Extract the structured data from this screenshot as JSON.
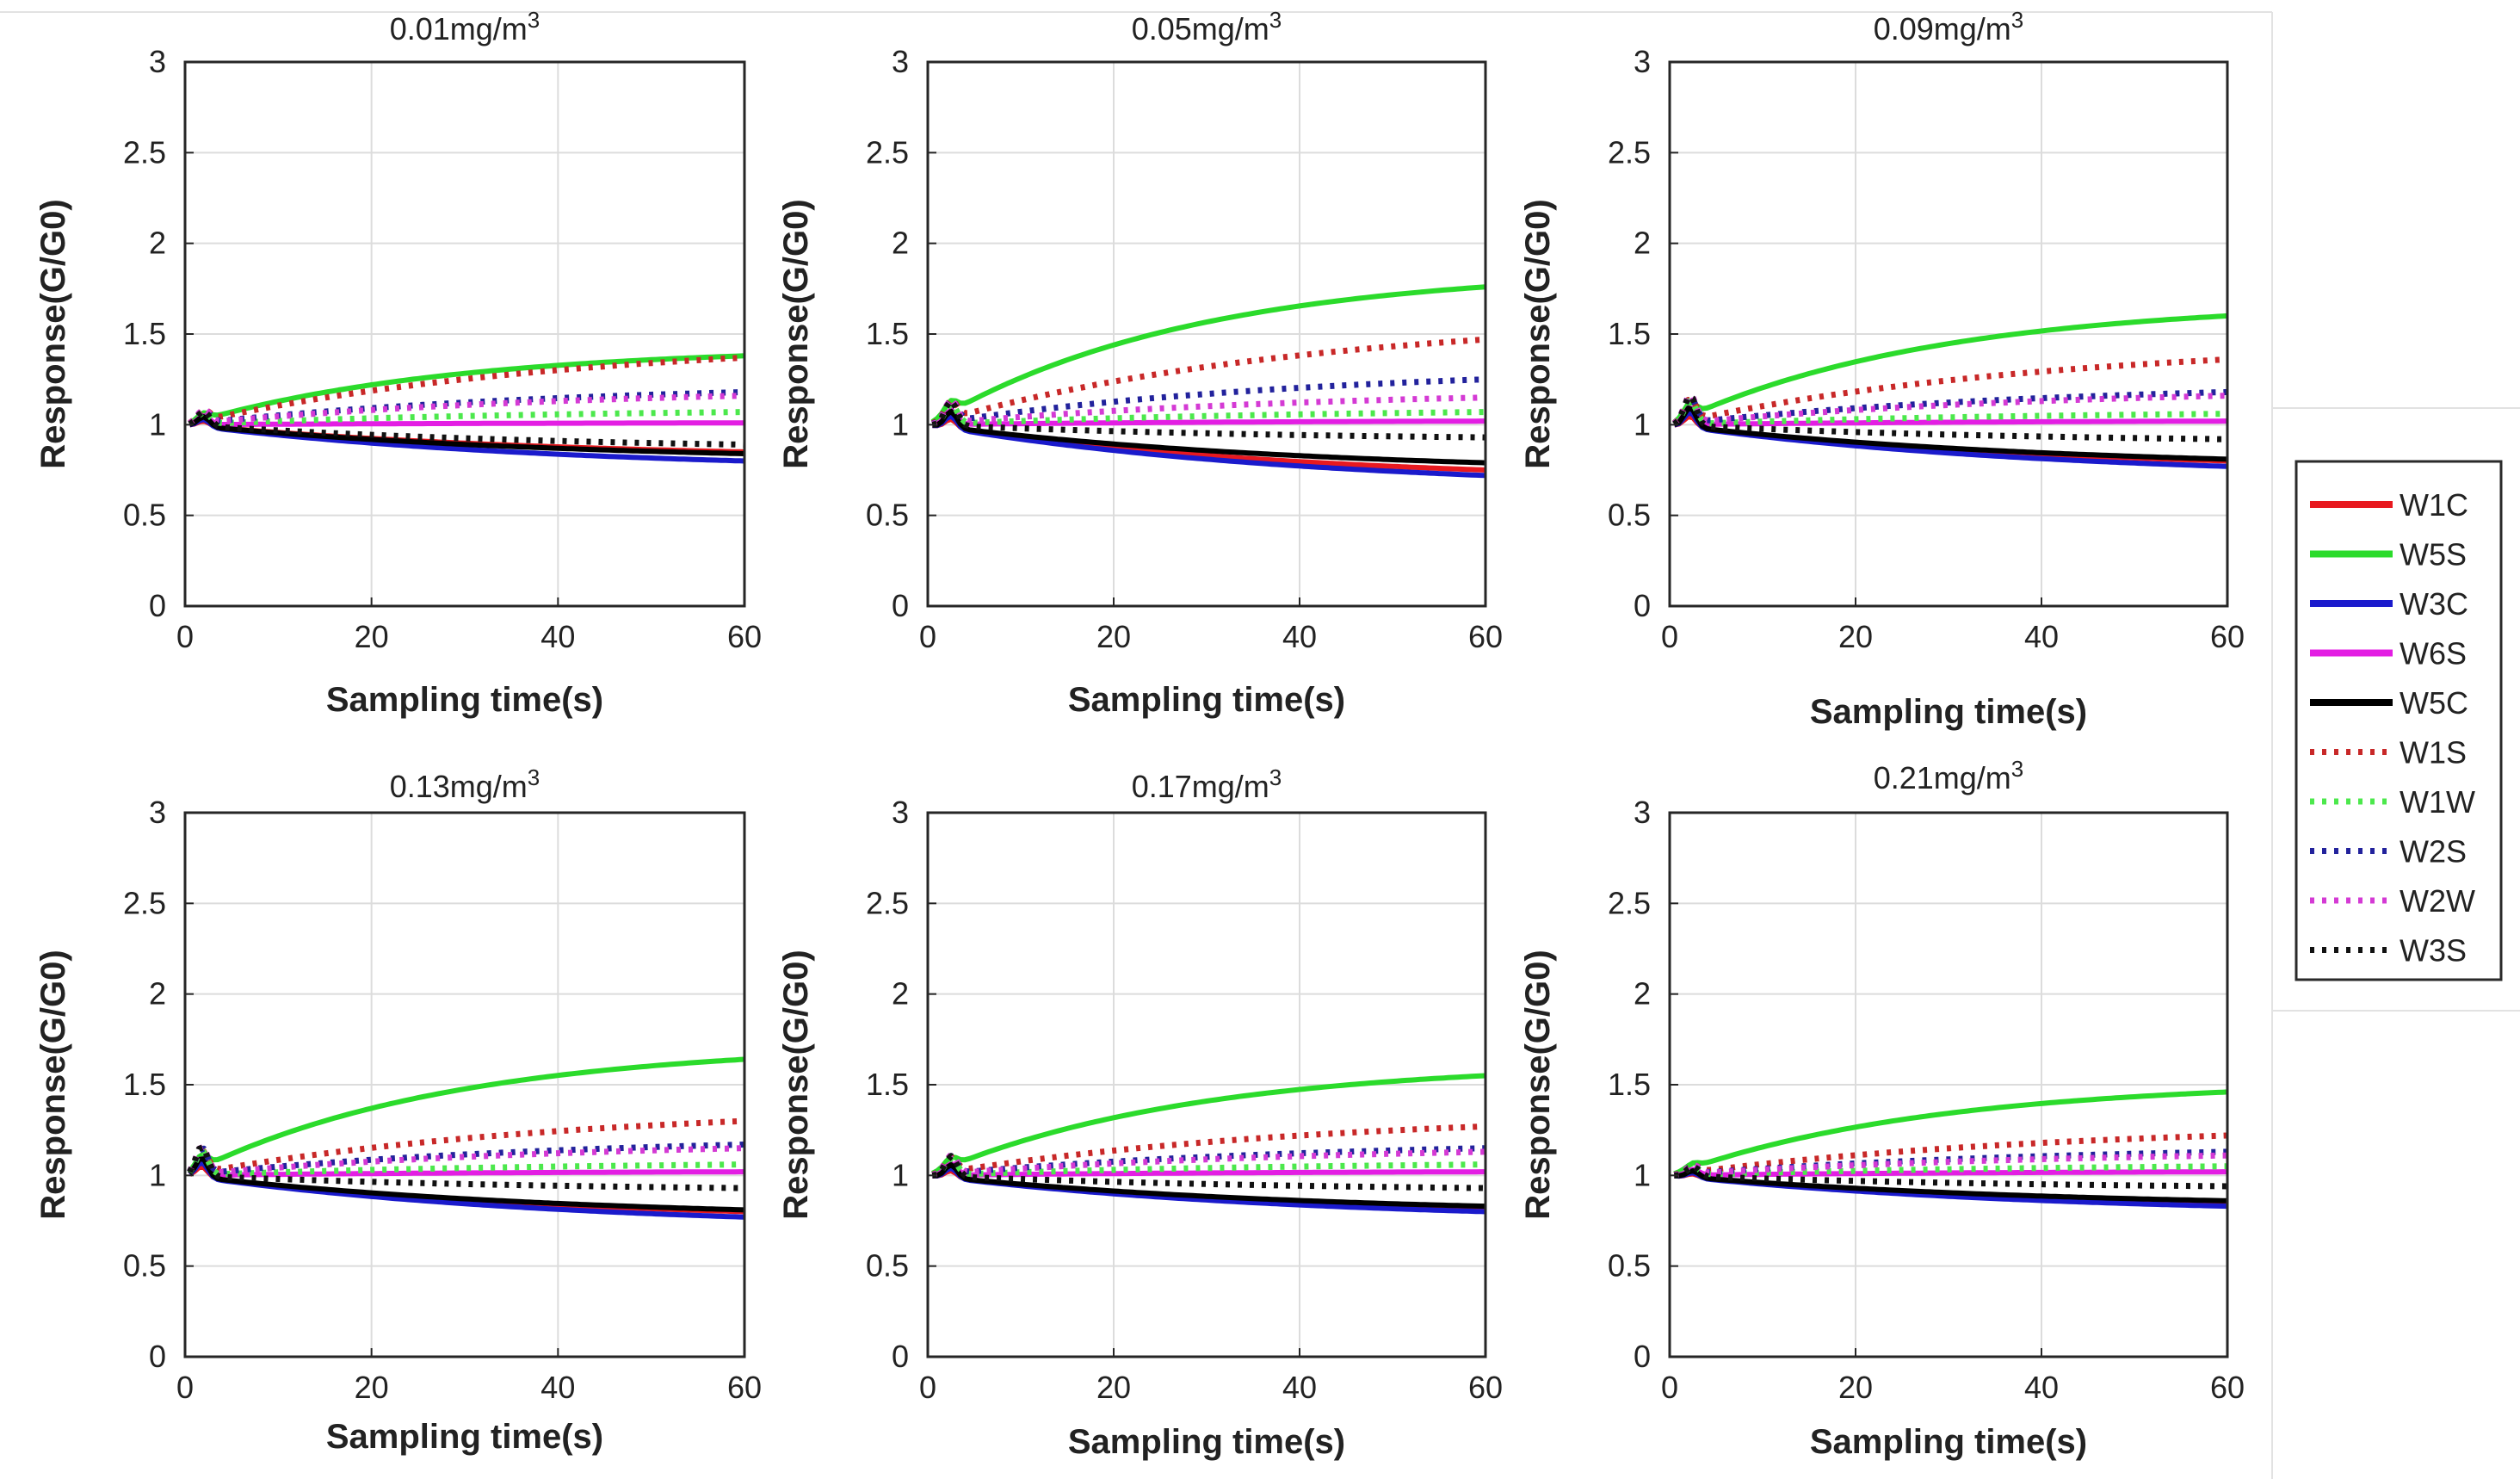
{
  "colors": {
    "W1C": "#e8191f",
    "W5S": "#2bdb2b",
    "W3C": "#1a1acc",
    "W6S": "#e31ee3",
    "W5C": "#000000",
    "W1S": "#c82828",
    "W1W": "#4ce84c",
    "W2S": "#22229c",
    "W2W": "#d43ad4",
    "W3S": "#111111"
  },
  "legend": {
    "entries": [
      {
        "name": "W1C",
        "style": "solid"
      },
      {
        "name": "W5S",
        "style": "solid"
      },
      {
        "name": "W3C",
        "style": "solid"
      },
      {
        "name": "W6S",
        "style": "solid"
      },
      {
        "name": "W5C",
        "style": "solid"
      },
      {
        "name": "W1S",
        "style": "dotted"
      },
      {
        "name": "W1W",
        "style": "dotted"
      },
      {
        "name": "W2S",
        "style": "dotted"
      },
      {
        "name": "W2W",
        "style": "dotted"
      },
      {
        "name": "W3S",
        "style": "dotted"
      }
    ]
  },
  "chart_data": [
    {
      "type": "line",
      "title_value": "0.01mg/m",
      "title_sup": "3",
      "xlabel": "Sampling time(s)",
      "ylabel": "Response(G/G0)",
      "xlim": [
        0,
        60
      ],
      "ylim": [
        0,
        3
      ],
      "xticks": [
        "0",
        "20",
        "40",
        "60"
      ],
      "yticks": [
        "0",
        "0.5",
        "1",
        "1.5",
        "2",
        "2.5",
        "3"
      ],
      "grid": true,
      "bump": 0.06,
      "bump_t": 2,
      "finals": {
        "W1C": 0.85,
        "W5S": 1.38,
        "W3C": 0.8,
        "W6S": 1.01,
        "W5C": 0.84,
        "W1S": 1.37,
        "W1W": 1.07,
        "W2S": 1.18,
        "W2W": 1.16,
        "W3S": 0.89
      }
    },
    {
      "type": "line",
      "title_value": "0.05mg/m",
      "title_sup": "3",
      "xlabel": "Sampling time(s)",
      "ylabel": "Response(G/G0)",
      "xlim": [
        0,
        60
      ],
      "ylim": [
        0,
        3
      ],
      "xticks": [
        "0",
        "20",
        "40",
        "60"
      ],
      "yticks": [
        "0",
        "0.5",
        "1",
        "1.5",
        "2",
        "2.5",
        "3"
      ],
      "grid": true,
      "bump": 0.1,
      "bump_t": 2.5,
      "finals": {
        "W1C": 0.75,
        "W5S": 1.76,
        "W3C": 0.72,
        "W6S": 1.02,
        "W5C": 0.79,
        "W1S": 1.47,
        "W1W": 1.07,
        "W2S": 1.25,
        "W2W": 1.15,
        "W3S": 0.93
      }
    },
    {
      "type": "line",
      "title_value": "0.09mg/m",
      "title_sup": "3",
      "xlabel": "Sampling time(s)",
      "ylabel": "Response(G/G0)",
      "xlim": [
        0,
        60
      ],
      "ylim": [
        0,
        3
      ],
      "xticks": [
        "0",
        "20",
        "40",
        "60"
      ],
      "yticks": [
        "0",
        "0.5",
        "1",
        "1.5",
        "2",
        "2.5",
        "3"
      ],
      "grid": true,
      "bump": 0.12,
      "bump_t": 2.2,
      "finals": {
        "W1C": 0.8,
        "W5S": 1.6,
        "W3C": 0.77,
        "W6S": 1.02,
        "W5C": 0.81,
        "W1S": 1.36,
        "W1W": 1.06,
        "W2S": 1.18,
        "W2W": 1.16,
        "W3S": 0.92
      }
    },
    {
      "type": "line",
      "title_value": "0.13mg/m",
      "title_sup": "3",
      "xlabel": "Sampling time(s)",
      "ylabel": "Response(G/G0)",
      "xlim": [
        0,
        60
      ],
      "ylim": [
        0,
        3
      ],
      "xticks": [
        "0",
        "20",
        "40",
        "60"
      ],
      "yticks": [
        "0",
        "0.5",
        "1",
        "1.5",
        "2",
        "2.5",
        "3"
      ],
      "grid": true,
      "bump": 0.12,
      "bump_t": 1.8,
      "finals": {
        "W1C": 0.8,
        "W5S": 1.64,
        "W3C": 0.77,
        "W6S": 1.02,
        "W5C": 0.81,
        "W1S": 1.3,
        "W1W": 1.06,
        "W2S": 1.17,
        "W2W": 1.15,
        "W3S": 0.93
      }
    },
    {
      "type": "line",
      "title_value": "0.17mg/m",
      "title_sup": "3",
      "xlabel": "Sampling time(s)",
      "ylabel": "Response(G/G0)",
      "xlim": [
        0,
        60
      ],
      "ylim": [
        0,
        3
      ],
      "xticks": [
        "0",
        "20",
        "40",
        "60"
      ],
      "yticks": [
        "0",
        "0.5",
        "1",
        "1.5",
        "2",
        "2.5",
        "3"
      ],
      "grid": true,
      "bump": 0.08,
      "bump_t": 2.5,
      "finals": {
        "W1C": 0.82,
        "W5S": 1.55,
        "W3C": 0.8,
        "W6S": 1.02,
        "W5C": 0.83,
        "W1S": 1.27,
        "W1W": 1.06,
        "W2S": 1.15,
        "W2W": 1.13,
        "W3S": 0.93
      }
    },
    {
      "type": "line",
      "title_value": "0.21mg/m",
      "title_sup": "3",
      "xlabel": "Sampling time(s)",
      "ylabel": "Response(G/G0)",
      "xlim": [
        0,
        60
      ],
      "ylim": [
        0,
        3
      ],
      "xticks": [
        "0",
        "20",
        "40",
        "60"
      ],
      "yticks": [
        "0",
        "0.5",
        "1",
        "1.5",
        "2",
        "2.5",
        "3"
      ],
      "grid": true,
      "bump": 0.04,
      "bump_t": 2.5,
      "finals": {
        "W1C": 0.85,
        "W5S": 1.46,
        "W3C": 0.83,
        "W6S": 1.02,
        "W5C": 0.86,
        "W1S": 1.22,
        "W1W": 1.05,
        "W2S": 1.13,
        "W2W": 1.11,
        "W3S": 0.94
      }
    }
  ]
}
